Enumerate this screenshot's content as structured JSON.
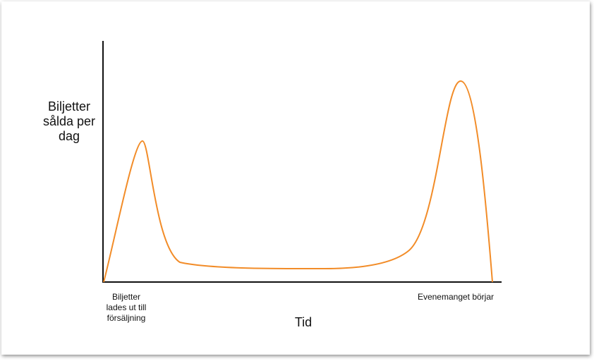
{
  "y_axis_label": [
    "Biljetter",
    "sålda per",
    "dag"
  ],
  "x_axis_label": "Tid",
  "x_annotations": [
    {
      "lines": [
        "Biljetter",
        "lades ut till",
        "försäljning"
      ]
    },
    {
      "lines": [
        "Evenemanget börjar"
      ]
    }
  ]
}
